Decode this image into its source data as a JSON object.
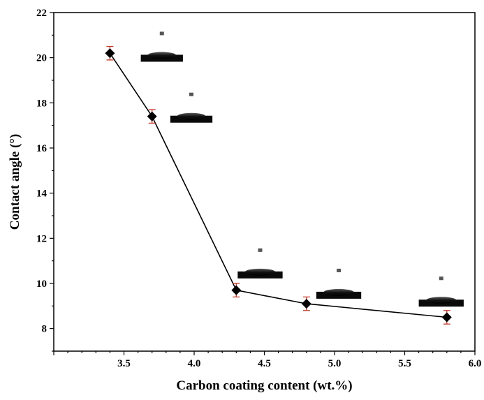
{
  "chart_data": {
    "type": "scatter",
    "title": "",
    "xlabel": "Carbon coating content (wt.%)",
    "ylabel": "Contact angle (°)",
    "xlim": [
      3.0,
      6.0
    ],
    "ylim": [
      7.0,
      22.0
    ],
    "xticks": [
      "3.5",
      "4.0",
      "4.5",
      "5.0",
      "5.5",
      "6.0"
    ],
    "yticks": [
      "8",
      "10",
      "12",
      "14",
      "16",
      "18",
      "20",
      "22"
    ],
    "grid": false,
    "legend": "none",
    "line_connected": true,
    "marker": "diamond",
    "errorbar_color": "#c0392b",
    "series": [
      {
        "x": [
          3.4,
          3.7,
          4.3,
          4.8,
          5.8
        ],
        "y": [
          20.2,
          17.4,
          9.7,
          9.1,
          8.5
        ],
        "err": [
          0.3,
          0.3,
          0.3,
          0.3,
          0.3
        ]
      }
    ],
    "droplet_images": [
      {
        "x": 3.77,
        "y": 20.1,
        "width": 0.3
      },
      {
        "x": 3.98,
        "y": 17.4,
        "width": 0.3
      },
      {
        "x": 4.47,
        "y": 10.5,
        "width": 0.32
      },
      {
        "x": 5.03,
        "y": 9.6,
        "width": 0.32
      },
      {
        "x": 5.76,
        "y": 9.25,
        "width": 0.32
      }
    ]
  }
}
